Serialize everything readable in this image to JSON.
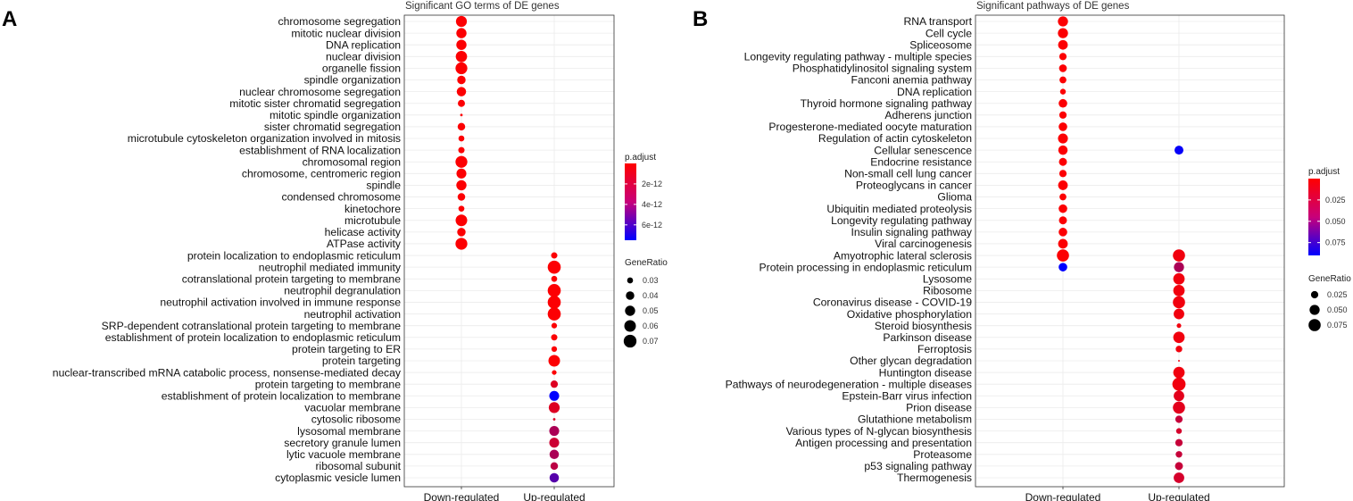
{
  "chart_data": [
    {
      "type": "scatter",
      "panel_label": "A",
      "title": "Significant GO terms of DE genes",
      "categories": [
        "Down-regulated",
        "Up-regulated"
      ],
      "terms": [
        "chromosome segregation",
        "mitotic nuclear division",
        "DNA replication",
        "nuclear division",
        "organelle fission",
        "spindle organization",
        "nuclear chromosome segregation",
        "mitotic sister chromatid segregation",
        "mitotic spindle organization",
        "sister chromatid segregation",
        "microtubule cytoskeleton organization involved in mitosis",
        "establishment of RNA localization",
        "chromosomal region",
        "chromosome, centromeric region",
        "spindle",
        "condensed chromosome",
        "kinetochore",
        "microtubule",
        "helicase activity",
        "ATPase activity",
        "protein localization to endoplasmic reticulum",
        "neutrophil mediated immunity",
        "cotranslational protein targeting to membrane",
        "neutrophil degranulation",
        "neutrophil activation involved in immune response",
        "neutrophil activation",
        "SRP-dependent cotranslational protein targeting to membrane",
        "establishment of protein localization to endoplasmic reticulum",
        "protein targeting to ER",
        "protein targeting",
        "nuclear-transcribed mRNA catabolic process, nonsense-mediated decay",
        "protein targeting to membrane",
        "establishment of protein localization to membrane",
        "vacuolar membrane",
        "cytosolic ribosome",
        "lysosomal membrane",
        "secretory granule lumen",
        "lytic vacuole membrane",
        "ribosomal subunit",
        "cytoplasmic vesicle lumen"
      ],
      "points": [
        {
          "term": 0,
          "group": 0,
          "gene_ratio": 0.055,
          "p_adjust": 1e-13
        },
        {
          "term": 1,
          "group": 0,
          "gene_ratio": 0.05,
          "p_adjust": 1e-13
        },
        {
          "term": 2,
          "group": 0,
          "gene_ratio": 0.05,
          "p_adjust": 1e-13
        },
        {
          "term": 3,
          "group": 0,
          "gene_ratio": 0.058,
          "p_adjust": 1e-13
        },
        {
          "term": 4,
          "group": 0,
          "gene_ratio": 0.062,
          "p_adjust": 1e-13
        },
        {
          "term": 5,
          "group": 0,
          "gene_ratio": 0.04,
          "p_adjust": 1e-13
        },
        {
          "term": 6,
          "group": 0,
          "gene_ratio": 0.045,
          "p_adjust": 1e-13
        },
        {
          "term": 7,
          "group": 0,
          "gene_ratio": 0.034,
          "p_adjust": 1e-13
        },
        {
          "term": 8,
          "group": 0,
          "gene_ratio": 0.025,
          "p_adjust": 1e-13
        },
        {
          "term": 9,
          "group": 0,
          "gene_ratio": 0.036,
          "p_adjust": 1e-13
        },
        {
          "term": 10,
          "group": 0,
          "gene_ratio": 0.03,
          "p_adjust": 1e-13
        },
        {
          "term": 11,
          "group": 0,
          "gene_ratio": 0.031,
          "p_adjust": 1e-13
        },
        {
          "term": 12,
          "group": 0,
          "gene_ratio": 0.062,
          "p_adjust": 1e-13
        },
        {
          "term": 13,
          "group": 0,
          "gene_ratio": 0.048,
          "p_adjust": 1e-13
        },
        {
          "term": 14,
          "group": 0,
          "gene_ratio": 0.05,
          "p_adjust": 1e-13
        },
        {
          "term": 15,
          "group": 0,
          "gene_ratio": 0.036,
          "p_adjust": 1e-13
        },
        {
          "term": 16,
          "group": 0,
          "gene_ratio": 0.03,
          "p_adjust": 1e-13
        },
        {
          "term": 17,
          "group": 0,
          "gene_ratio": 0.06,
          "p_adjust": 1e-13
        },
        {
          "term": 18,
          "group": 0,
          "gene_ratio": 0.04,
          "p_adjust": 1e-13
        },
        {
          "term": 19,
          "group": 0,
          "gene_ratio": 0.062,
          "p_adjust": 1e-13
        },
        {
          "term": 20,
          "group": 1,
          "gene_ratio": 0.031,
          "p_adjust": 1e-13
        },
        {
          "term": 21,
          "group": 1,
          "gene_ratio": 0.072,
          "p_adjust": 1e-13
        },
        {
          "term": 22,
          "group": 1,
          "gene_ratio": 0.03,
          "p_adjust": 1e-13
        },
        {
          "term": 23,
          "group": 1,
          "gene_ratio": 0.072,
          "p_adjust": 1e-13
        },
        {
          "term": 24,
          "group": 1,
          "gene_ratio": 0.072,
          "p_adjust": 1e-13
        },
        {
          "term": 25,
          "group": 1,
          "gene_ratio": 0.072,
          "p_adjust": 1e-13
        },
        {
          "term": 26,
          "group": 1,
          "gene_ratio": 0.029,
          "p_adjust": 1e-13
        },
        {
          "term": 27,
          "group": 1,
          "gene_ratio": 0.031,
          "p_adjust": 1e-13
        },
        {
          "term": 28,
          "group": 1,
          "gene_ratio": 0.029,
          "p_adjust": 1e-13
        },
        {
          "term": 29,
          "group": 1,
          "gene_ratio": 0.06,
          "p_adjust": 1e-13
        },
        {
          "term": 30,
          "group": 1,
          "gene_ratio": 0.027,
          "p_adjust": 1e-13
        },
        {
          "term": 31,
          "group": 1,
          "gene_ratio": 0.035,
          "p_adjust": 1e-12
        },
        {
          "term": 32,
          "group": 1,
          "gene_ratio": 0.048,
          "p_adjust": 7.5e-12
        },
        {
          "term": 33,
          "group": 1,
          "gene_ratio": 0.055,
          "p_adjust": 1e-12
        },
        {
          "term": 34,
          "group": 1,
          "gene_ratio": 0.025,
          "p_adjust": 1e-12
        },
        {
          "term": 35,
          "group": 1,
          "gene_ratio": 0.048,
          "p_adjust": 2.5e-12
        },
        {
          "term": 36,
          "group": 1,
          "gene_ratio": 0.048,
          "p_adjust": 1.5e-12
        },
        {
          "term": 37,
          "group": 1,
          "gene_ratio": 0.045,
          "p_adjust": 2.5e-12
        },
        {
          "term": 38,
          "group": 1,
          "gene_ratio": 0.036,
          "p_adjust": 2e-12
        },
        {
          "term": 39,
          "group": 1,
          "gene_ratio": 0.045,
          "p_adjust": 5e-12
        }
      ],
      "color_legend": {
        "title": "p.adjust",
        "breaks": [
          2e-12,
          4e-12,
          6e-12
        ],
        "labels": [
          "2e-12",
          "4e-12",
          "6e-12"
        ],
        "range": [
          0,
          7.5e-12
        ],
        "low_color": "#ff0000",
        "high_color": "#0000ff"
      },
      "size_legend": {
        "title": "GeneRatio",
        "breaks": [
          0.03,
          0.04,
          0.05,
          0.06,
          0.07
        ],
        "labels": [
          "0.03",
          "0.04",
          "0.05",
          "0.06",
          "0.07"
        ],
        "range": [
          0.025,
          0.072
        ]
      }
    },
    {
      "type": "scatter",
      "panel_label": "B",
      "title": "Significant pathways of DE genes",
      "categories": [
        "Down-regulated",
        "Up-regulated"
      ],
      "terms": [
        "RNA transport",
        "Cell cycle",
        "Spliceosome",
        "Longevity regulating pathway - multiple species",
        "Phosphatidylinositol signaling system",
        "Fanconi anemia pathway",
        "DNA replication",
        "Thyroid hormone signaling pathway",
        "Adherens junction",
        "Progesterone-mediated oocyte maturation",
        "Regulation of actin cytoskeleton",
        "Cellular senescence",
        "Endocrine resistance",
        "Non-small cell lung cancer",
        "Proteoglycans in cancer",
        "Glioma",
        "Ubiquitin mediated proteolysis",
        "Longevity regulating pathway",
        "Insulin signaling pathway",
        "Viral carcinogenesis",
        "Amyotrophic lateral sclerosis",
        "Protein processing in endoplasmic reticulum",
        "Lysosome",
        "Ribosome",
        "Coronavirus disease - COVID-19",
        "Oxidative phosphorylation",
        "Steroid biosynthesis",
        "Parkinson disease",
        "Ferroptosis",
        "Other glycan degradation",
        "Huntington disease",
        "Pathways of neurodegeneration - multiple diseases",
        "Epstein-Barr virus infection",
        "Prion disease",
        "Glutathione metabolism",
        "Various types of N-glycan biosynthesis",
        "Antigen processing and presentation",
        "Proteasome",
        "p53 signaling pathway",
        "Thermogenesis"
      ],
      "points": [
        {
          "term": 0,
          "group": 0,
          "gene_ratio": 0.05,
          "p_adjust": 0.001
        },
        {
          "term": 1,
          "group": 0,
          "gene_ratio": 0.05,
          "p_adjust": 0.001
        },
        {
          "term": 2,
          "group": 0,
          "gene_ratio": 0.045,
          "p_adjust": 0.001
        },
        {
          "term": 3,
          "group": 0,
          "gene_ratio": 0.025,
          "p_adjust": 0.001
        },
        {
          "term": 4,
          "group": 0,
          "gene_ratio": 0.028,
          "p_adjust": 0.001
        },
        {
          "term": 5,
          "group": 0,
          "gene_ratio": 0.022,
          "p_adjust": 0.001
        },
        {
          "term": 6,
          "group": 0,
          "gene_ratio": 0.015,
          "p_adjust": 0.001
        },
        {
          "term": 7,
          "group": 0,
          "gene_ratio": 0.035,
          "p_adjust": 0.001
        },
        {
          "term": 8,
          "group": 0,
          "gene_ratio": 0.025,
          "p_adjust": 0.001
        },
        {
          "term": 9,
          "group": 0,
          "gene_ratio": 0.035,
          "p_adjust": 0.001
        },
        {
          "term": 10,
          "group": 0,
          "gene_ratio": 0.048,
          "p_adjust": 0.001
        },
        {
          "term": 11,
          "group": 0,
          "gene_ratio": 0.042,
          "p_adjust": 0.001
        },
        {
          "term": 12,
          "group": 0,
          "gene_ratio": 0.03,
          "p_adjust": 0.001
        },
        {
          "term": 13,
          "group": 0,
          "gene_ratio": 0.025,
          "p_adjust": 0.001
        },
        {
          "term": 14,
          "group": 0,
          "gene_ratio": 0.045,
          "p_adjust": 0.001
        },
        {
          "term": 15,
          "group": 0,
          "gene_ratio": 0.022,
          "p_adjust": 0.001
        },
        {
          "term": 16,
          "group": 0,
          "gene_ratio": 0.035,
          "p_adjust": 0.001
        },
        {
          "term": 17,
          "group": 0,
          "gene_ratio": 0.03,
          "p_adjust": 0.001
        },
        {
          "term": 18,
          "group": 0,
          "gene_ratio": 0.035,
          "p_adjust": 0.001
        },
        {
          "term": 19,
          "group": 0,
          "gene_ratio": 0.045,
          "p_adjust": 0.001
        },
        {
          "term": 20,
          "group": 0,
          "gene_ratio": 0.075,
          "p_adjust": 0.001
        },
        {
          "term": 21,
          "group": 0,
          "gene_ratio": 0.035,
          "p_adjust": 0.09
        },
        {
          "term": 11,
          "group": 1,
          "gene_ratio": 0.038,
          "p_adjust": 0.088
        },
        {
          "term": 20,
          "group": 1,
          "gene_ratio": 0.075,
          "p_adjust": 0.005
        },
        {
          "term": 21,
          "group": 1,
          "gene_ratio": 0.05,
          "p_adjust": 0.03
        },
        {
          "term": 22,
          "group": 1,
          "gene_ratio": 0.065,
          "p_adjust": 0.005
        },
        {
          "term": 23,
          "group": 1,
          "gene_ratio": 0.065,
          "p_adjust": 0.005
        },
        {
          "term": 24,
          "group": 1,
          "gene_ratio": 0.075,
          "p_adjust": 0.005
        },
        {
          "term": 25,
          "group": 1,
          "gene_ratio": 0.055,
          "p_adjust": 0.005
        },
        {
          "term": 26,
          "group": 1,
          "gene_ratio": 0.01,
          "p_adjust": 0.005
        },
        {
          "term": 27,
          "group": 1,
          "gene_ratio": 0.065,
          "p_adjust": 0.005
        },
        {
          "term": 28,
          "group": 1,
          "gene_ratio": 0.02,
          "p_adjust": 0.005
        },
        {
          "term": 29,
          "group": 1,
          "gene_ratio": 0.005,
          "p_adjust": 0.005
        },
        {
          "term": 30,
          "group": 1,
          "gene_ratio": 0.065,
          "p_adjust": 0.005
        },
        {
          "term": 31,
          "group": 1,
          "gene_ratio": 0.09,
          "p_adjust": 0.005
        },
        {
          "term": 32,
          "group": 1,
          "gene_ratio": 0.055,
          "p_adjust": 0.01
        },
        {
          "term": 33,
          "group": 1,
          "gene_ratio": 0.075,
          "p_adjust": 0.01
        },
        {
          "term": 34,
          "group": 1,
          "gene_ratio": 0.025,
          "p_adjust": 0.02
        },
        {
          "term": 35,
          "group": 1,
          "gene_ratio": 0.015,
          "p_adjust": 0.015
        },
        {
          "term": 36,
          "group": 1,
          "gene_ratio": 0.025,
          "p_adjust": 0.02
        },
        {
          "term": 37,
          "group": 1,
          "gene_ratio": 0.02,
          "p_adjust": 0.02
        },
        {
          "term": 38,
          "group": 1,
          "gene_ratio": 0.03,
          "p_adjust": 0.02
        },
        {
          "term": 39,
          "group": 1,
          "gene_ratio": 0.055,
          "p_adjust": 0.015
        }
      ],
      "color_legend": {
        "title": "p.adjust",
        "breaks": [
          0.025,
          0.05,
          0.075
        ],
        "labels": [
          "0.025",
          "0.050",
          "0.075"
        ],
        "range": [
          0,
          0.09
        ],
        "low_color": "#ff0000",
        "high_color": "#0000ff"
      },
      "size_legend": {
        "title": "GeneRatio",
        "breaks": [
          0.025,
          0.05,
          0.075
        ],
        "labels": [
          "0.025",
          "0.050",
          "0.075"
        ],
        "range": [
          0.005,
          0.09
        ]
      }
    }
  ]
}
